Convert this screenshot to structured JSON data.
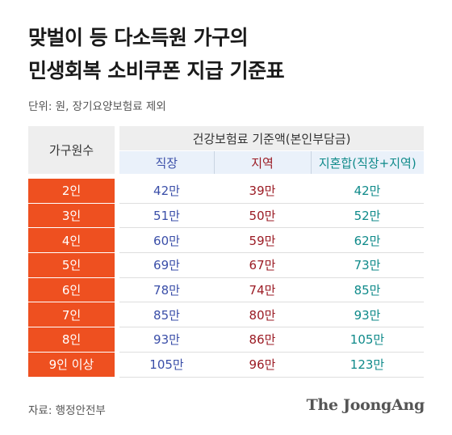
{
  "title": {
    "line1": "맞벌이 등 다소득원 가구의",
    "line2": "민생회복 소비쿠폰 지급 기준표"
  },
  "unit_note": "단위: 원, 장기요양보험료 제외",
  "table": {
    "household_header": "가구원수",
    "group_header": "건강보험료 기준액(본인부담금)",
    "columns": [
      "직장",
      "지역",
      "지혼합(직장+지역)"
    ],
    "rows": [
      {
        "household": "2인",
        "workplace": "42만",
        "regional": "39만",
        "mixed": "42만"
      },
      {
        "household": "3인",
        "workplace": "51만",
        "regional": "50만",
        "mixed": "52만"
      },
      {
        "household": "4인",
        "workplace": "60만",
        "regional": "59만",
        "mixed": "62만"
      },
      {
        "household": "5인",
        "workplace": "69만",
        "regional": "67만",
        "mixed": "73만"
      },
      {
        "household": "6인",
        "workplace": "78만",
        "regional": "74만",
        "mixed": "85만"
      },
      {
        "household": "7인",
        "workplace": "85만",
        "regional": "80만",
        "mixed": "93만"
      },
      {
        "household": "8인",
        "workplace": "93만",
        "regional": "86만",
        "mixed": "105만"
      },
      {
        "household": "9인 이상",
        "workplace": "105만",
        "regional": "96만",
        "mixed": "123만"
      }
    ]
  },
  "source": "자료: 행정안전부",
  "logo": "The JoongAng",
  "colors": {
    "household_cell": "#ee5020",
    "workplace_text": "#3a4ea8",
    "regional_text": "#9b1b24",
    "mixed_text": "#0f8a8a"
  }
}
